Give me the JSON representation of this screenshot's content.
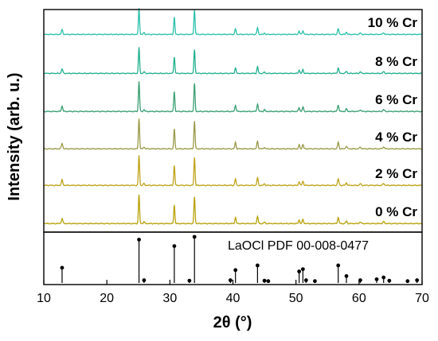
{
  "chart_data": {
    "type": "line",
    "title": "",
    "xlabel": "2θ (°)",
    "ylabel": "Intensity (arb. u.)",
    "xlim": [
      10,
      70
    ],
    "x_ticks": [
      10,
      20,
      30,
      40,
      50,
      60,
      70
    ],
    "grid": false,
    "reference": {
      "label": "LaOCl PDF 00-008-0477",
      "peaks": [
        {
          "x": 12.9,
          "y": 0.33
        },
        {
          "x": 25.1,
          "y": 0.94
        },
        {
          "x": 25.9,
          "y": 0.06
        },
        {
          "x": 30.7,
          "y": 0.8
        },
        {
          "x": 33.1,
          "y": 0.05
        },
        {
          "x": 33.9,
          "y": 1.0
        },
        {
          "x": 39.6,
          "y": 0.06
        },
        {
          "x": 40.4,
          "y": 0.28
        },
        {
          "x": 43.9,
          "y": 0.38
        },
        {
          "x": 45.0,
          "y": 0.05
        },
        {
          "x": 45.6,
          "y": 0.04
        },
        {
          "x": 50.5,
          "y": 0.25
        },
        {
          "x": 51.1,
          "y": 0.3
        },
        {
          "x": 51.6,
          "y": 0.06
        },
        {
          "x": 53.0,
          "y": 0.04
        },
        {
          "x": 56.7,
          "y": 0.38
        },
        {
          "x": 58.0,
          "y": 0.15
        },
        {
          "x": 60.2,
          "y": 0.06
        },
        {
          "x": 62.8,
          "y": 0.08
        },
        {
          "x": 63.9,
          "y": 0.12
        },
        {
          "x": 64.8,
          "y": 0.05
        },
        {
          "x": 67.7,
          "y": 0.04
        },
        {
          "x": 69.2,
          "y": 0.06
        }
      ]
    },
    "series": [
      {
        "name": "0 % Cr",
        "color": "#b8a20a"
      },
      {
        "name": "2 % Cr",
        "color": "#bfa31a"
      },
      {
        "name": "4 % Cr",
        "color": "#9a9a4a"
      },
      {
        "name": "6 % Cr",
        "color": "#3a9f73"
      },
      {
        "name": "8 % Cr",
        "color": "#22b08e"
      },
      {
        "name": "10 % Cr",
        "color": "#2cc0ab"
      }
    ],
    "peaks": [
      {
        "x": 12.9,
        "h": 0.17,
        "w": 0.22
      },
      {
        "x": 25.1,
        "h": 0.95,
        "w": 0.18
      },
      {
        "x": 25.9,
        "h": 0.06,
        "w": 0.2
      },
      {
        "x": 30.7,
        "h": 0.62,
        "w": 0.18
      },
      {
        "x": 33.9,
        "h": 0.88,
        "w": 0.18
      },
      {
        "x": 40.4,
        "h": 0.2,
        "w": 0.2
      },
      {
        "x": 43.9,
        "h": 0.24,
        "w": 0.2
      },
      {
        "x": 45.0,
        "h": 0.05,
        "w": 0.2
      },
      {
        "x": 50.5,
        "h": 0.12,
        "w": 0.2
      },
      {
        "x": 51.1,
        "h": 0.14,
        "w": 0.2
      },
      {
        "x": 56.7,
        "h": 0.2,
        "w": 0.22
      },
      {
        "x": 58.0,
        "h": 0.08,
        "w": 0.22
      },
      {
        "x": 60.2,
        "h": 0.05,
        "w": 0.25
      },
      {
        "x": 63.9,
        "h": 0.06,
        "w": 0.25
      }
    ]
  }
}
